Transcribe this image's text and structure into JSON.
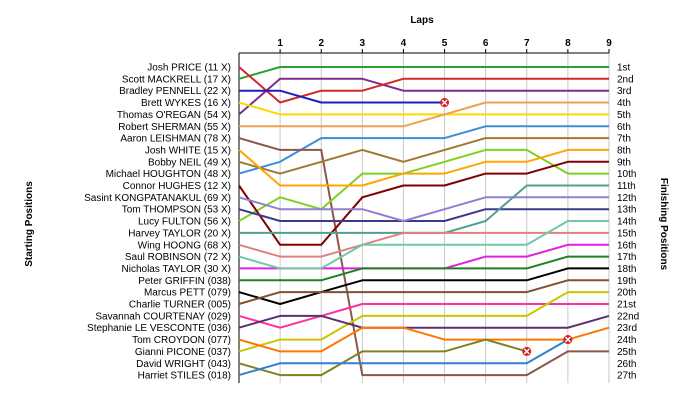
{
  "chart_data": {
    "type": "line",
    "title": "Laps",
    "ylabel_left": "Starting Positions",
    "ylabel_right": "Finishing Positions",
    "laps": [
      1,
      2,
      3,
      4,
      5,
      6,
      7,
      8,
      9
    ],
    "position_labels": [
      "1st",
      "2nd",
      "3rd",
      "4th",
      "5th",
      "6th",
      "7th",
      "8th",
      "9th",
      "10th",
      "11th",
      "12th",
      "13th",
      "14th",
      "15th",
      "16th",
      "17th",
      "18th",
      "19th",
      "20th",
      "21st",
      "22nd",
      "23rd",
      "24th",
      "25th",
      "26th",
      "27th"
    ],
    "series": [
      {
        "name": "Scott MACKRELL (17 X)",
        "color": "#2ca02c",
        "positions": [
          2,
          1,
          1,
          1,
          1,
          1,
          1,
          1,
          1,
          1
        ]
      },
      {
        "name": "Thomas O'REGAN (54 X)",
        "color": "#7b2d8e",
        "positions": [
          5,
          2,
          2,
          2,
          3,
          3,
          3,
          3,
          3,
          3
        ]
      },
      {
        "name": "Josh PRICE (11 X)",
        "color": "#d62728",
        "positions": [
          1,
          4,
          3,
          3,
          2,
          2,
          2,
          2,
          2,
          2
        ]
      },
      {
        "name": "Bradley PENNELL (22 X)",
        "color": "#1f1fbf",
        "positions": [
          3,
          3,
          4,
          4,
          4,
          4
        ],
        "retired": true
      },
      {
        "name": "Brett WYKES (16 X)",
        "color": "#ffd700",
        "positions": [
          4,
          5,
          5,
          5,
          5,
          5,
          5,
          5,
          5,
          5
        ]
      },
      {
        "name": "Robert SHERMAN (55 X)",
        "color": "#f0a050",
        "positions": [
          6,
          6,
          6,
          6,
          6,
          5,
          4,
          4,
          4,
          4
        ]
      },
      {
        "name": "Michael HOUGHTON (48 X)",
        "color": "#3a8fd8",
        "positions": [
          10,
          9,
          7,
          7,
          7,
          7,
          6,
          6,
          6,
          6
        ]
      },
      {
        "name": "Aaron LEISHMAN (78 X)",
        "color": "#8c564b",
        "positions": [
          7,
          8,
          8,
          27,
          27,
          27,
          27,
          27,
          25,
          25
        ]
      },
      {
        "name": "Bobby NEIL (49 X)",
        "color": "#a07830",
        "positions": [
          9,
          10,
          9,
          8,
          9,
          8,
          7,
          7,
          7,
          7
        ]
      },
      {
        "name": "Lucy FULTON (56 X)",
        "color": "#7fd020",
        "positions": [
          14,
          12,
          13,
          10,
          10,
          9,
          8,
          8,
          10,
          10
        ]
      },
      {
        "name": "Connor HUGHES (12 X)",
        "color": "#800000",
        "positions": [
          11,
          16,
          16,
          12,
          11,
          11,
          10,
          10,
          9,
          9
        ]
      },
      {
        "name": "Josh WHITE (15 X)",
        "color": "#ffa500",
        "positions": [
          8,
          11,
          11,
          11,
          10,
          10,
          9,
          9,
          8,
          8
        ]
      },
      {
        "name": "Tom THOMPSON (53 X)",
        "color": "#3a3a8a",
        "positions": [
          13,
          14,
          14,
          14,
          14,
          14,
          13,
          13,
          13,
          13
        ]
      },
      {
        "name": "Sasint KONGPATANAKUL (69 X)",
        "color": "#9080d0",
        "positions": [
          12,
          13,
          13,
          13,
          14,
          13,
          12,
          12,
          12,
          12
        ]
      },
      {
        "name": "Harvey TAYLOR (20 X)",
        "color": "#50a090",
        "positions": [
          15,
          15,
          15,
          15,
          15,
          15,
          14,
          11,
          11,
          11
        ]
      },
      {
        "name": "Wing HOONG (68 X)",
        "color": "#e08080",
        "positions": [
          16,
          17,
          17,
          16,
          15,
          15,
          15,
          15,
          15,
          15
        ]
      },
      {
        "name": "Nicholas TAYLOR (30 X)",
        "color": "#e020e0",
        "positions": [
          18,
          18,
          18,
          18,
          18,
          18,
          17,
          17,
          16,
          16
        ]
      },
      {
        "name": "Saul ROBINSON (72 X)",
        "color": "#70c8a8",
        "positions": [
          17,
          18,
          18,
          16,
          16,
          16,
          16,
          16,
          14,
          14
        ]
      },
      {
        "name": "Peter GRIFFIN (038)",
        "color": "#208020",
        "positions": [
          19,
          19,
          19,
          18,
          18,
          18,
          18,
          18,
          17,
          17
        ]
      },
      {
        "name": "Marcus PETT (079)",
        "color": "#000000",
        "positions": [
          20,
          21,
          20,
          19,
          19,
          19,
          19,
          19,
          18,
          18
        ]
      },
      {
        "name": "Charlie TURNER (005)",
        "color": "#805030",
        "positions": [
          21,
          20,
          20,
          20,
          20,
          20,
          20,
          20,
          19,
          19
        ]
      },
      {
        "name": "Savannah COURTENAY (029)",
        "color": "#ff30a0",
        "positions": [
          22,
          23,
          22,
          21,
          21,
          21,
          21,
          21,
          21,
          21
        ]
      },
      {
        "name": "Gianni PICONE (037)",
        "color": "#c8c800",
        "positions": [
          25,
          24,
          24,
          22,
          22,
          22,
          22,
          22,
          20,
          20
        ]
      },
      {
        "name": "Stephanie LE VESCONTE (036)",
        "color": "#5d2e6e",
        "positions": [
          23,
          22,
          22,
          23,
          23,
          23,
          23,
          23,
          23,
          22
        ]
      },
      {
        "name": "Tom CROYDON (077)",
        "color": "#ff7700",
        "positions": [
          24,
          25,
          25,
          23,
          23,
          24,
          24,
          24,
          24,
          23
        ]
      },
      {
        "name": "David WRIGHT (043)",
        "color": "#808020",
        "positions": [
          26,
          27,
          27,
          25,
          25,
          25,
          24,
          25
        ],
        "retired": true
      },
      {
        "name": "Harriet STILES (018)",
        "color": "#3080d0",
        "positions": [
          27,
          26,
          26,
          26,
          26,
          26,
          26,
          26,
          24
        ],
        "retired": true
      }
    ]
  }
}
